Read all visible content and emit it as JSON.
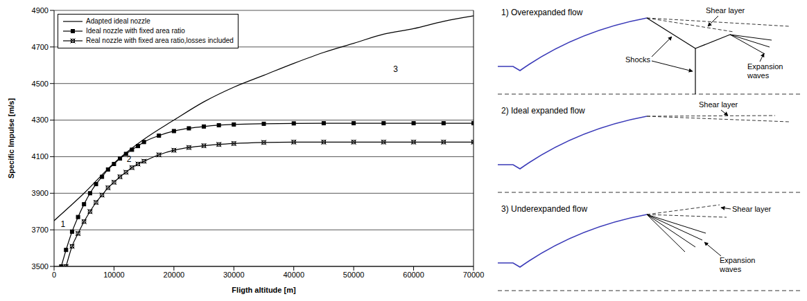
{
  "chart_data": {
    "type": "line",
    "x_label": "Fligth altitude [m]",
    "y_label": "Specific Impulse [m/s]",
    "xlim": [
      0,
      70000
    ],
    "xticks": [
      0,
      10000,
      20000,
      30000,
      40000,
      50000,
      60000,
      70000
    ],
    "ylim": [
      3500,
      4900
    ],
    "yticks": [
      3500,
      3700,
      3900,
      4100,
      4300,
      4500,
      4700,
      4900
    ],
    "grid": true,
    "legend": "upper left",
    "series": [
      {
        "name": "Adapted ideal nozzle",
        "color": "#000000",
        "marker": "none",
        "line_style": "solid",
        "x": [
          0,
          5000,
          10000,
          15000,
          20000,
          25000,
          30000,
          35000,
          40000,
          45000,
          50000,
          55000,
          60000,
          65000,
          70000
        ],
        "values": [
          3750,
          3900,
          4065,
          4195,
          4300,
          4400,
          4480,
          4545,
          4610,
          4670,
          4720,
          4770,
          4800,
          4840,
          4870
        ]
      },
      {
        "name": "Ideal nozzle with fixed area ratio",
        "color": "#000000",
        "marker": "square",
        "line_style": "solid",
        "x": [
          1200,
          2000,
          3000,
          4000,
          5000,
          6000,
          7000,
          8000,
          9000,
          10000,
          11000,
          12000,
          13000,
          14000,
          15000,
          17500,
          20000,
          22500,
          25000,
          27500,
          30000,
          35000,
          40000,
          45000,
          50000,
          55000,
          60000,
          65000,
          70000
        ],
        "values": [
          3500,
          3590,
          3690,
          3770,
          3840,
          3900,
          3950,
          3990,
          4030,
          4060,
          4090,
          4115,
          4138,
          4158,
          4180,
          4215,
          4240,
          4255,
          4265,
          4272,
          4276,
          4280,
          4282,
          4283,
          4283,
          4283,
          4283,
          4283,
          4283
        ]
      },
      {
        "name": "Real nozzle with fixed area ratio,losses included",
        "color": "#000000",
        "marker": "x",
        "line_style": "solid",
        "x": [
          2000,
          3000,
          4000,
          5000,
          6000,
          7000,
          8000,
          9000,
          10000,
          11000,
          12000,
          13000,
          14000,
          15000,
          17500,
          20000,
          22500,
          25000,
          27500,
          30000,
          35000,
          40000,
          45000,
          50000,
          55000,
          60000,
          65000,
          70000
        ],
        "values": [
          3500,
          3610,
          3680,
          3745,
          3800,
          3850,
          3890,
          3930,
          3960,
          3990,
          4015,
          4040,
          4060,
          4075,
          4110,
          4135,
          4150,
          4160,
          4167,
          4172,
          4178,
          4180,
          4180,
          4180,
          4180,
          4180,
          4180,
          4180
        ]
      }
    ],
    "annotations": [
      {
        "text": "1",
        "x": 1500,
        "y": 3730
      },
      {
        "text": "2",
        "x": 12500,
        "y": 4085
      },
      {
        "text": "3",
        "x": 57000,
        "y": 4580
      }
    ]
  },
  "diagram": {
    "panels": [
      {
        "title": "1) Overexpanded flow",
        "shear_layer": "Shear layer",
        "shocks": "Shocks",
        "expansion_waves": "Expansion waves"
      },
      {
        "title": "2) Ideal expanded flow",
        "shear_layer": "Shear layer"
      },
      {
        "title": "3) Underexpanded flow",
        "shear_layer": "Shear layer",
        "expansion_waves": "Expansion waves"
      }
    ]
  }
}
